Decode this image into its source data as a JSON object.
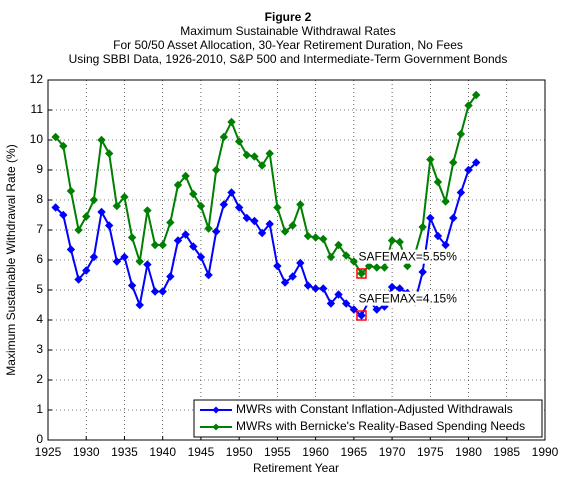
{
  "chart_data": {
    "type": "line",
    "title": "Figure 2",
    "subtitle": [
      "Maximum Sustainable Withdrawal Rates",
      "For 50/50 Asset Allocation, 30-Year Retirement Duration, No Fees",
      "Using SBBI Data, 1926-2010, S&P 500 and Intermediate-Term Government Bonds"
    ],
    "x_label": "Retirement Year",
    "y_label": "Maximum Sustainable Withdrawal Rate (%)",
    "x": [
      1926,
      1927,
      1928,
      1929,
      1930,
      1931,
      1932,
      1933,
      1934,
      1935,
      1936,
      1937,
      1938,
      1939,
      1940,
      1941,
      1942,
      1943,
      1944,
      1945,
      1946,
      1947,
      1948,
      1949,
      1950,
      1951,
      1952,
      1953,
      1954,
      1955,
      1956,
      1957,
      1958,
      1959,
      1960,
      1961,
      1962,
      1963,
      1964,
      1965,
      1966,
      1967,
      1968,
      1969,
      1970,
      1971,
      1972,
      1973,
      1974,
      1975,
      1976,
      1977,
      1978,
      1979,
      1980,
      1981
    ],
    "series": [
      {
        "name": "MWRs with Constant Inflation-Adjusted Withdrawals",
        "color": "#0000ff",
        "values": [
          7.75,
          7.5,
          6.35,
          5.35,
          5.65,
          6.1,
          7.6,
          7.15,
          5.95,
          6.1,
          5.15,
          4.5,
          5.85,
          4.95,
          4.95,
          5.45,
          6.65,
          6.85,
          6.45,
          6.1,
          5.5,
          6.95,
          7.85,
          8.25,
          7.75,
          7.4,
          7.3,
          6.9,
          7.2,
          5.8,
          5.25,
          5.45,
          5.9,
          5.15,
          5.05,
          5.05,
          4.55,
          4.85,
          4.55,
          4.35,
          4.15,
          4.65,
          4.35,
          4.45,
          5.1,
          5.05,
          4.9,
          4.6,
          5.6,
          7.4,
          6.8,
          6.5,
          7.4,
          8.25,
          9.0,
          9.25
        ]
      },
      {
        "name": "MWRs with Bernicke's Reality-Based Spending Needs",
        "color": "#008000",
        "values": [
          10.1,
          9.8,
          8.3,
          7.0,
          7.45,
          8.0,
          10.0,
          9.55,
          7.8,
          8.1,
          6.75,
          5.95,
          7.65,
          6.5,
          6.5,
          7.25,
          8.5,
          8.8,
          8.2,
          7.8,
          7.05,
          9.0,
          10.1,
          10.6,
          9.95,
          9.5,
          9.45,
          9.15,
          9.55,
          7.75,
          6.95,
          7.15,
          7.85,
          6.8,
          6.75,
          6.7,
          6.1,
          6.5,
          6.15,
          5.95,
          5.55,
          5.8,
          5.75,
          5.75,
          6.65,
          6.6,
          5.8,
          6.2,
          7.1,
          9.35,
          8.6,
          7.95,
          9.25,
          10.2,
          11.15,
          11.5
        ]
      }
    ],
    "annotations": [
      {
        "text": "SAFEMAX=5.55%",
        "x": 1966,
        "y": 5.55
      },
      {
        "text": "SAFEMAX=4.15%",
        "x": 1966,
        "y": 4.15
      }
    ],
    "highlight_color": "#ff0000",
    "xlim": [
      1925,
      1990
    ],
    "ylim": [
      0,
      12
    ],
    "xticks": [
      1925,
      1930,
      1935,
      1940,
      1945,
      1950,
      1955,
      1960,
      1965,
      1970,
      1975,
      1980,
      1985,
      1990
    ],
    "yticks": [
      0,
      1,
      2,
      3,
      4,
      5,
      6,
      7,
      8,
      9,
      10,
      11,
      12
    ],
    "grid": true,
    "legend": "lower right"
  }
}
